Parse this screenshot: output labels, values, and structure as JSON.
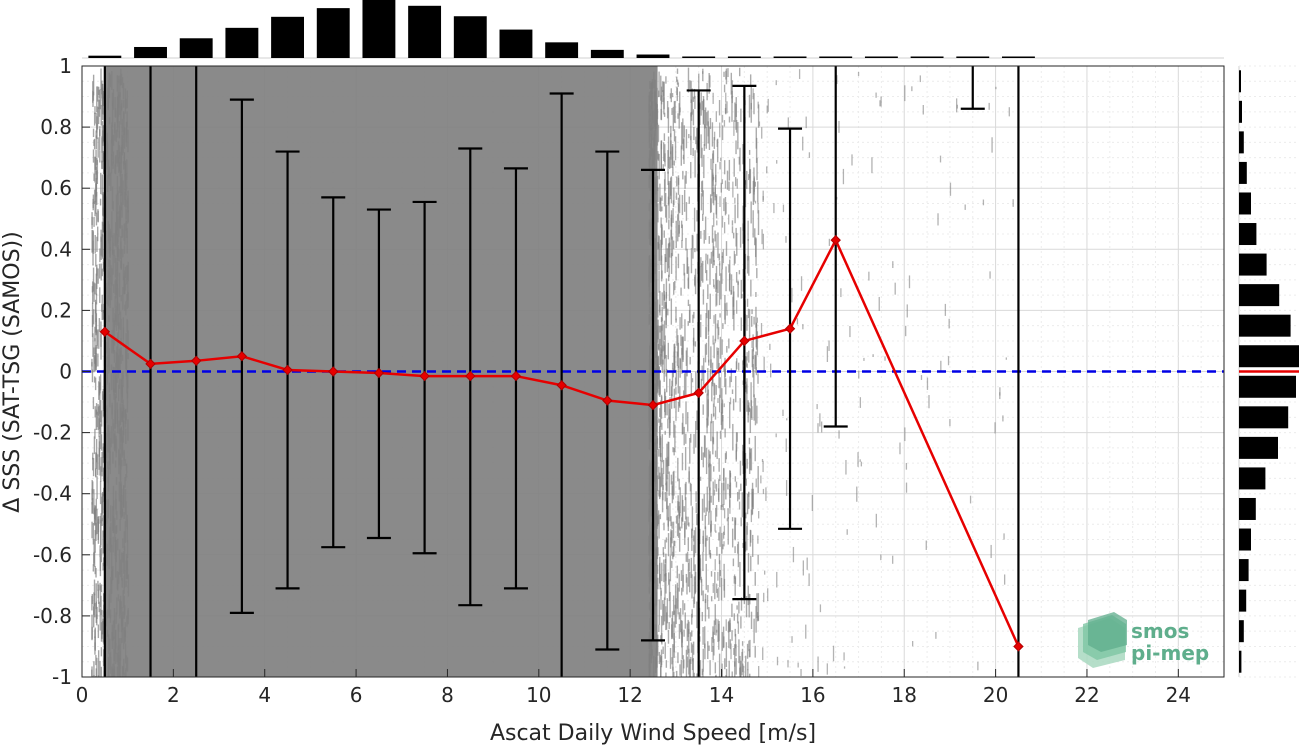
{
  "chart_data": {
    "type": "scatter",
    "xlabel": "Ascat Daily Wind Speed [m/s]",
    "ylabel": "Δ SSS (SAT-TSG (SAMOS))",
    "xlim": [
      0,
      25
    ],
    "ylim": [
      -1,
      1
    ],
    "xticks": [
      "0",
      "2",
      "4",
      "6",
      "8",
      "10",
      "12",
      "14",
      "16",
      "18",
      "20",
      "22",
      "24"
    ],
    "yticks": [
      "-1",
      "-0.8",
      "-0.6",
      "-0.4",
      "-0.2",
      "0",
      "0.2",
      "0.4",
      "0.6",
      "0.8",
      "1"
    ],
    "grid": true,
    "reference_line": {
      "y": 0,
      "style": "dashed",
      "color": "#0000e6"
    },
    "series": [
      {
        "kind": "binned-mean",
        "color": "#e60000",
        "x": [
          0.5,
          1.5,
          2.5,
          3.5,
          4.5,
          5.5,
          6.5,
          7.5,
          8.5,
          9.5,
          10.5,
          11.5,
          12.5,
          13.5,
          14.5,
          15.5,
          16.5,
          20.5
        ],
        "y": [
          0.13,
          0.025,
          0.035,
          0.05,
          0.005,
          0.0,
          -0.005,
          -0.015,
          -0.015,
          -0.015,
          -0.045,
          -0.095,
          -0.11,
          -0.07,
          0.1,
          0.14,
          0.43,
          -0.9
        ],
        "err_low": [
          -1.05,
          -1.05,
          -1.05,
          -0.79,
          -0.71,
          -0.575,
          -0.545,
          -0.595,
          -0.765,
          -0.71,
          -1.05,
          -0.91,
          -0.88,
          -1.05,
          -0.745,
          -0.515,
          -0.18,
          -1.05
        ],
        "err_high": [
          1.05,
          1.05,
          1.05,
          0.89,
          0.72,
          0.57,
          0.53,
          0.555,
          0.73,
          0.665,
          0.91,
          0.72,
          0.66,
          0.92,
          0.935,
          0.795,
          1.05,
          1.05
        ]
      }
    ],
    "extra_errorbars": [
      {
        "x": 19.5,
        "low": 0.86,
        "high": 1.05
      }
    ],
    "scatter_density": {
      "color": "#808080",
      "dense_range": [
        0.2,
        13.8
      ],
      "sparse_range": [
        13.8,
        20.5
      ]
    },
    "top_histogram": {
      "bins": [
        0.5,
        1.5,
        2.5,
        3.5,
        4.5,
        5.5,
        6.5,
        7.5,
        8.5,
        9.5,
        10.5,
        11.5,
        12.5,
        13.5,
        14.5,
        15.5,
        16.5,
        17.5,
        18.5,
        19.5,
        20.5
      ],
      "counts": [
        0.04,
        0.19,
        0.34,
        0.52,
        0.71,
        0.86,
        1.0,
        0.9,
        0.72,
        0.49,
        0.27,
        0.14,
        0.06,
        0.02,
        0.01,
        0.005,
        0.003,
        0.002,
        0.002,
        0.002,
        0.002
      ]
    },
    "right_histogram": {
      "bins": [
        -0.95,
        -0.85,
        -0.75,
        -0.65,
        -0.55,
        -0.45,
        -0.35,
        -0.25,
        -0.15,
        -0.05,
        0.05,
        0.15,
        0.25,
        0.35,
        0.45,
        0.55,
        0.65,
        0.75,
        0.85,
        0.95
      ],
      "counts": [
        0.04,
        0.08,
        0.12,
        0.16,
        0.2,
        0.28,
        0.44,
        0.65,
        0.82,
        0.95,
        1.0,
        0.86,
        0.67,
        0.46,
        0.29,
        0.2,
        0.13,
        0.08,
        0.05,
        0.03
      ],
      "median_marker": 0,
      "marker_color": "#e60000"
    }
  },
  "logo": {
    "line1": "smos",
    "line2": "pi-mep",
    "color": "#5fae8c"
  }
}
